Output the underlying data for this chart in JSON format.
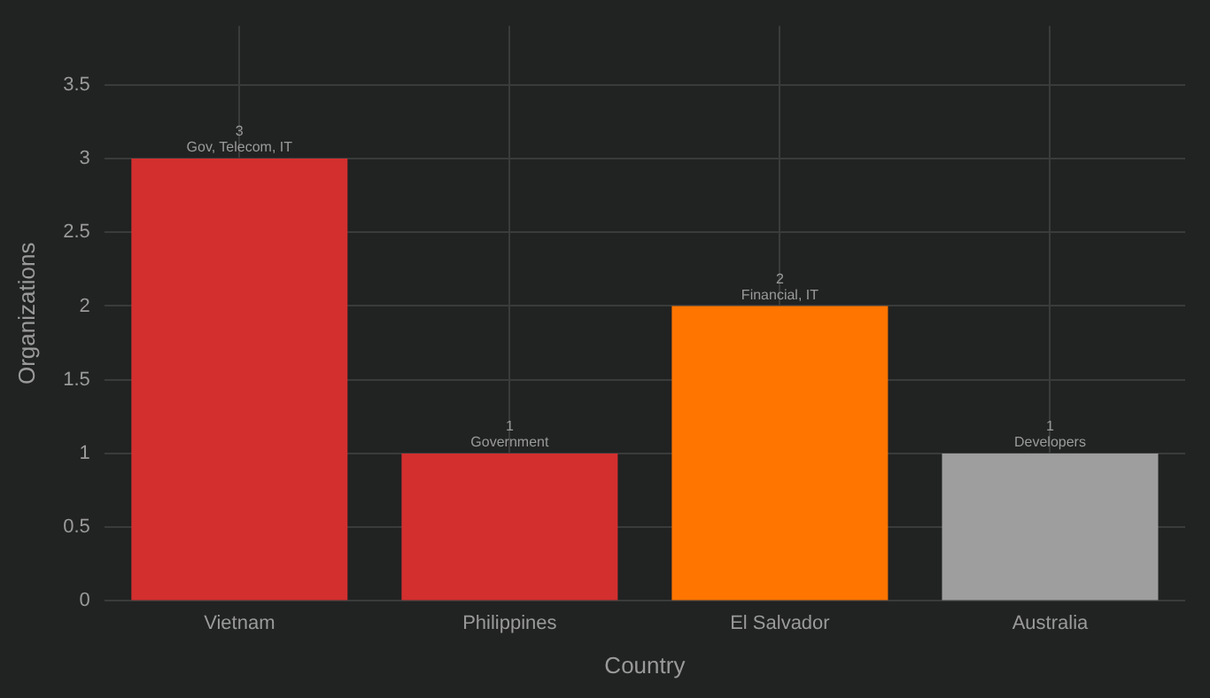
{
  "chart_data": {
    "type": "bar",
    "xlabel": "Country",
    "ylabel": "Organizations",
    "categories": [
      "Vietnam",
      "Philippines",
      "El Salvador",
      "Australia"
    ],
    "values": [
      3,
      1,
      2,
      1
    ],
    "colors": [
      "#d32f2f",
      "#d32f2f",
      "#ff7500",
      "#9e9e9e"
    ],
    "ylim": [
      0,
      3.9
    ],
    "yticks": [
      0,
      0.5,
      1,
      1.5,
      2,
      2.5,
      3,
      3.5
    ],
    "grid": true,
    "legend": false,
    "data_labels": true,
    "annotations": [
      {
        "text": "Gov, Telecom, IT",
        "x": "Vietnam",
        "y": 3
      },
      {
        "text": "Government",
        "x": "Philippines",
        "y": 1
      },
      {
        "text": "Financial, IT",
        "x": "El Salvador",
        "y": 2
      },
      {
        "text": "Developers",
        "x": "Australia",
        "y": 1
      }
    ]
  }
}
